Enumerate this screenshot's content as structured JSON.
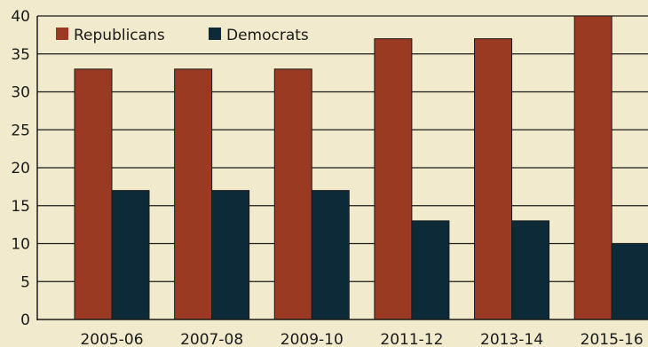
{
  "chart_data": {
    "type": "bar",
    "categories": [
      "2005-06",
      "2007-08",
      "2009-10",
      "2011-12",
      "2013-14",
      "2015-16"
    ],
    "series": [
      {
        "name": "Republicans",
        "values": [
          33,
          33,
          33,
          37,
          37,
          40
        ],
        "color": "#9B3A22"
      },
      {
        "name": "Democrats",
        "values": [
          17,
          17,
          17,
          13,
          13,
          10
        ],
        "color": "#0D2A38"
      }
    ],
    "ylim": [
      0,
      40
    ],
    "yticks": [
      0,
      5,
      10,
      15,
      20,
      25,
      30,
      35,
      40
    ],
    "grid": true,
    "legend": "top-left",
    "title": "",
    "xlabel": "",
    "ylabel": ""
  },
  "colors": {
    "background": "#F2EACD",
    "axis": "#1a1a1a"
  }
}
